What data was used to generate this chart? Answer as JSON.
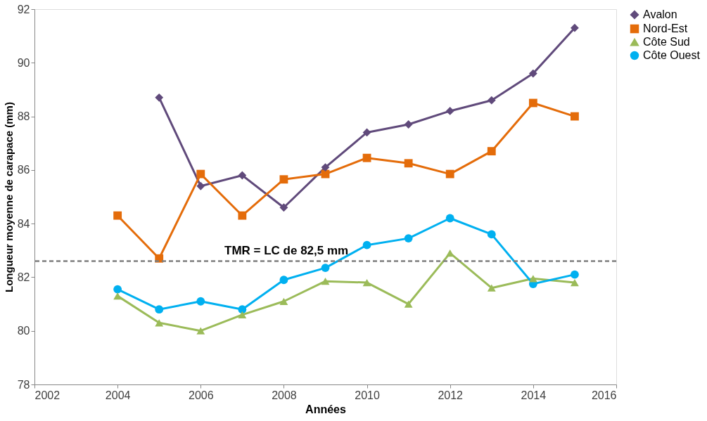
{
  "chart_data": {
    "type": "line",
    "xlabel": "Années",
    "ylabel": "Longueur moyenne de carapace (mm)",
    "x": [
      2004,
      2005,
      2006,
      2007,
      2008,
      2009,
      2010,
      2011,
      2012,
      2013,
      2014,
      2015
    ],
    "series": [
      {
        "name": "Avalon",
        "color": "#604a7b",
        "marker": "diamond",
        "values": [
          null,
          88.7,
          85.4,
          85.8,
          84.6,
          86.1,
          87.4,
          87.7,
          88.2,
          88.6,
          89.6,
          91.3
        ]
      },
      {
        "name": "Nord-Est",
        "color": "#e46c0a",
        "marker": "square",
        "values": [
          84.3,
          82.7,
          85.85,
          84.3,
          85.65,
          85.85,
          86.45,
          86.25,
          85.85,
          86.7,
          88.5,
          88.0
        ]
      },
      {
        "name": "Côte Sud",
        "color": "#9bbb59",
        "marker": "triangle",
        "values": [
          81.3,
          80.3,
          80.0,
          80.6,
          81.1,
          81.85,
          81.8,
          81.0,
          82.9,
          81.6,
          81.95,
          81.8
        ]
      },
      {
        "name": "Côte Ouest",
        "color": "#00b0f0",
        "marker": "circle",
        "values": [
          81.55,
          80.8,
          81.1,
          80.8,
          81.9,
          82.35,
          83.2,
          83.45,
          84.2,
          83.6,
          81.75,
          82.1
        ]
      }
    ],
    "xlim": [
      2002,
      2016
    ],
    "xticks": [
      2002,
      2004,
      2006,
      2008,
      2010,
      2012,
      2014,
      2016
    ],
    "ylim": [
      78,
      92
    ],
    "yticks": [
      78,
      80,
      82,
      84,
      86,
      88,
      90,
      92
    ],
    "ref_lines": [
      {
        "axis": "y",
        "value": 82.6,
        "label": "TMR = LC de 82,5 mm",
        "color": "#7f7f7f",
        "line_style": "dashed"
      }
    ],
    "grid": false,
    "legend": "right"
  }
}
